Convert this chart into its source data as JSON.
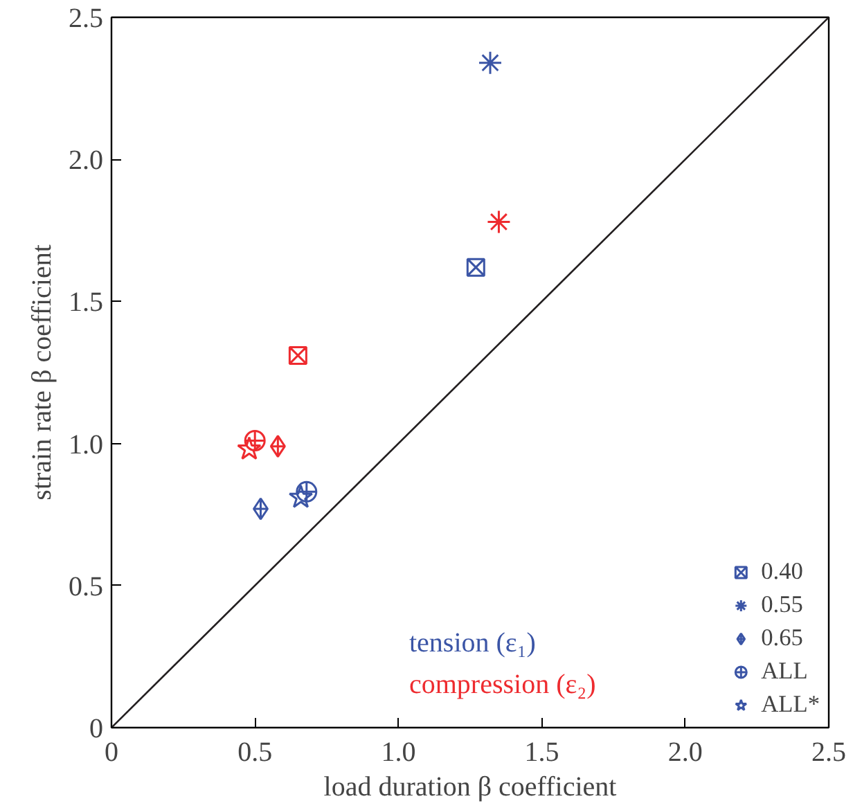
{
  "chart_data": {
    "type": "scatter",
    "xlabel": "load duration β coefficient",
    "ylabel": "strain rate β coefficient",
    "xlim": [
      0,
      2.5
    ],
    "ylim": [
      0,
      2.5
    ],
    "xticks": [
      0,
      {
        "value": 0.5,
        "label": "0.5"
      },
      {
        "value": 1,
        "label": "1.0"
      },
      {
        "value": 1.5,
        "label": "1.5"
      },
      {
        "value": 2,
        "label": "2.0"
      },
      {
        "value": 2.5,
        "label": "2.5"
      }
    ],
    "yticks": [
      0,
      {
        "value": 0.5,
        "label": "0.5"
      },
      {
        "value": 1,
        "label": "1.0"
      },
      {
        "value": 1.5,
        "label": "1.5"
      },
      {
        "value": 2,
        "label": "2.0"
      },
      {
        "value": 2.5,
        "label": "2.5"
      }
    ],
    "grid": false,
    "legend": "bottom right",
    "series": [
      {
        "name": "0.40",
        "x": [
          1.27,
          0.65
        ],
        "values": [
          1.62,
          1.31
        ],
        "colors": [
          "#3b55a6",
          "#ee2b2f"
        ]
      },
      {
        "name": "0.55",
        "marker": "cross",
        "x": [
          1.32,
          1.35
        ],
        "values": [
          2.34,
          1.78
        ],
        "colors": [
          "#3b55a6",
          "#ee2b2f"
        ]
      },
      {
        "name": "0.65",
        "x": [
          0.52,
          0.58
        ],
        "values": [
          0.77,
          0.99
        ],
        "colors": [
          "#3b55a6",
          "#ee2b2f"
        ]
      },
      {
        "name": "ALL",
        "marker": "circle",
        "x": [
          0.68,
          0.5
        ],
        "values": [
          0.83,
          1.01
        ],
        "colors": [
          "#3b55a6",
          "#ee2b2f"
        ]
      },
      {
        "name": "ALL*",
        "marker": "star",
        "x": [
          0.66,
          0.48
        ],
        "values": [
          0.81,
          0.98
        ],
        "colors": [
          "#3b55a6",
          "#ee2b2f"
        ]
      },
      {
        "type": "line",
        "x": [
          0,
          2.5
        ],
        "values": [
          0,
          2.5
        ],
        "color": "#231f20"
      }
    ],
    "annotations": [
      "tension (ε₁)",
      "compression (ε₂)"
    ]
  }
}
